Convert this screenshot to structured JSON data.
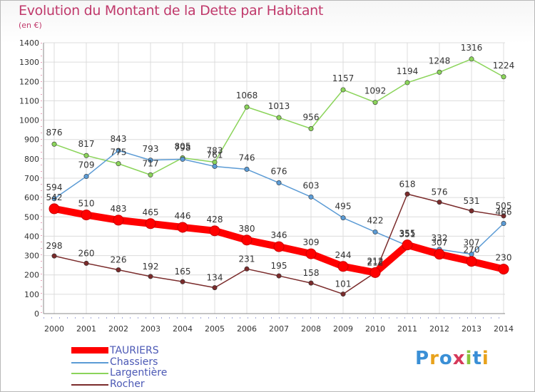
{
  "title": "Evolution du Montant de la Dette par Habitant",
  "subtitle": "(en €)",
  "logo": {
    "text": "Proxiti",
    "letters": [
      "P",
      "r",
      "o",
      "x",
      "i",
      "t",
      "i"
    ],
    "colors": [
      "#3a8fd6",
      "#e8a21c",
      "#3a8fd6",
      "#d6395a",
      "#8ac43c",
      "#3a8fd6",
      "#e8a21c"
    ]
  },
  "chart_data": {
    "type": "line",
    "x": [
      "2000",
      "2001",
      "2002",
      "2003",
      "2004",
      "2005",
      "2006",
      "2007",
      "2008",
      "2009",
      "2010",
      "2011",
      "2012",
      "2013",
      "2014"
    ],
    "ylim": [
      0,
      1400
    ],
    "yticks": [
      "0",
      "100",
      "200",
      "300",
      "400",
      "500",
      "600",
      "700",
      "800",
      "900",
      "1000",
      "1100",
      "1200",
      "1300",
      "1400"
    ],
    "grid": true,
    "legend_position": "bottom-left",
    "series": [
      {
        "name": "TAURIERS",
        "color": "#ff0000",
        "values": [
          542,
          510,
          483,
          465,
          446,
          428,
          380,
          346,
          309,
          244,
          212,
          355,
          307,
          270,
          230
        ]
      },
      {
        "name": "Chassiers",
        "color": "#5b9bd5",
        "values": [
          594,
          709,
          843,
          793,
          798,
          761,
          746,
          676,
          603,
          495,
          422,
          351,
          332,
          307,
          466
        ]
      },
      {
        "name": "Largentière",
        "color": "#8bd45a",
        "values": [
          876,
          817,
          775,
          717,
          805,
          783,
          1068,
          1013,
          956,
          1157,
          1092,
          1194,
          1248,
          1316,
          1224
        ]
      },
      {
        "name": "Rocher",
        "color": "#7a2b2b",
        "values": [
          298,
          260,
          226,
          192,
          165,
          134,
          231,
          195,
          158,
          101,
          212,
          618,
          576,
          531,
          505
        ]
      }
    ]
  }
}
